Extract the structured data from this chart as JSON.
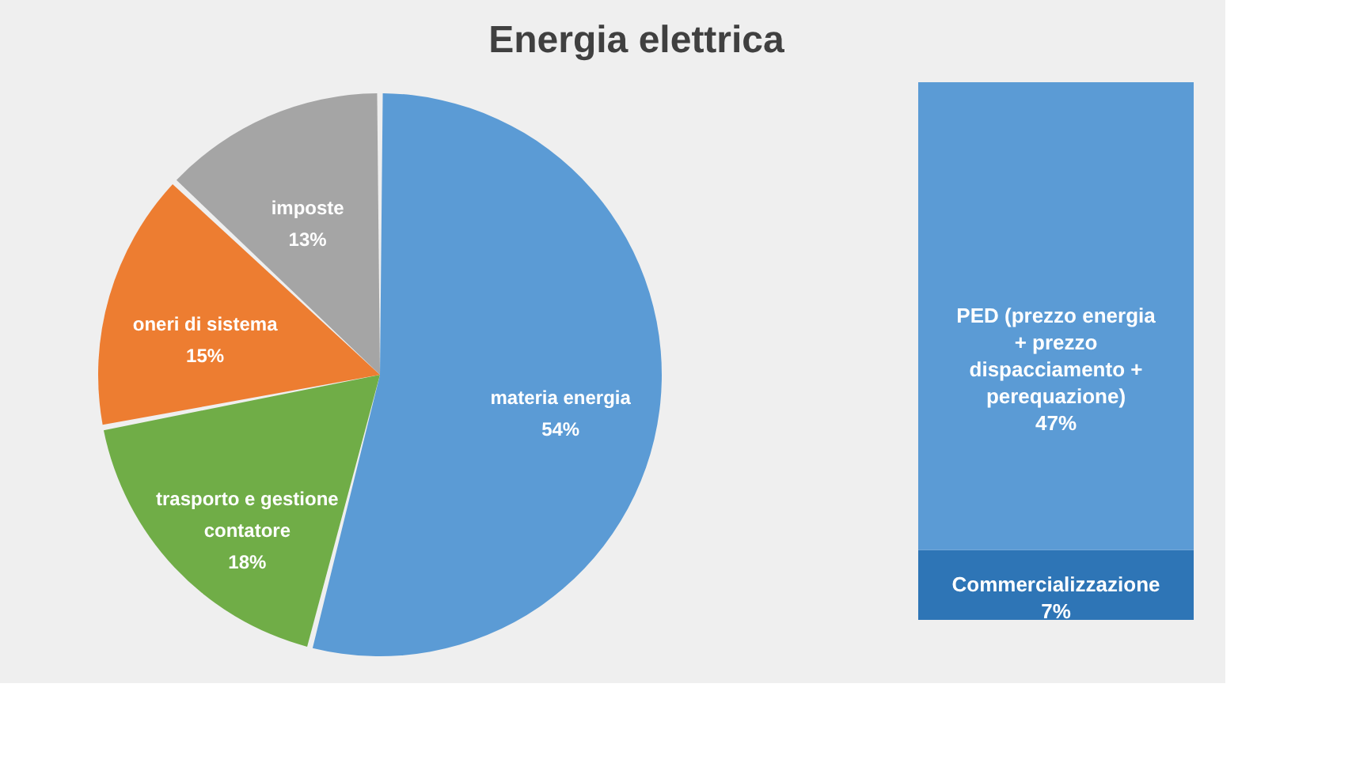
{
  "chart_data": [
    {
      "type": "pie",
      "title": "Energia elettrica",
      "categories": [
        "materia energia",
        "trasporto e gestione contatore",
        "oneri di sistema",
        "imposte"
      ],
      "values": [
        54,
        18,
        15,
        13
      ],
      "value_labels": [
        "54%",
        "18%",
        "15%",
        "13%"
      ],
      "colors": [
        "#5b9bd5",
        "#70ad47",
        "#ed7d31",
        "#a5a5a5"
      ],
      "legend": false
    },
    {
      "type": "bar",
      "stacked": true,
      "categories": [
        null
      ],
      "legend": false,
      "series": [
        {
          "name": "Commercializzazione",
          "color": "#2e75b6",
          "values": [
            7
          ],
          "value_labels": [
            "7%"
          ]
        },
        {
          "name": "PED (prezzo energia + prezzo dispacciamento + perequazione)",
          "color": "#5b9bd5",
          "values": [
            47
          ],
          "value_labels": [
            "47%"
          ]
        }
      ]
    }
  ]
}
